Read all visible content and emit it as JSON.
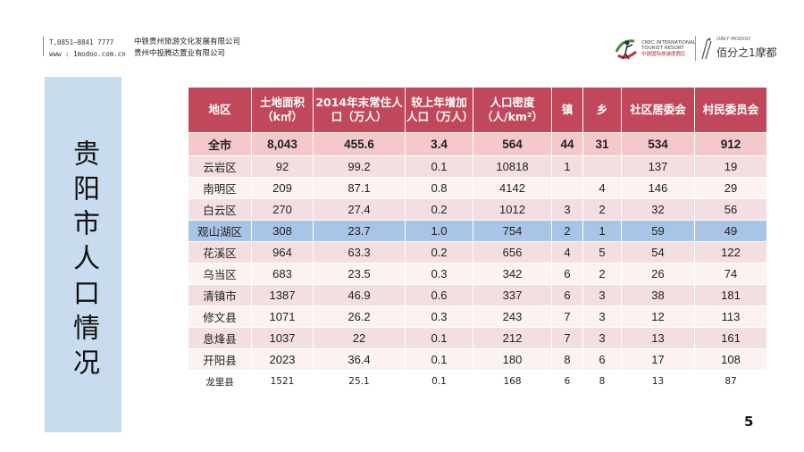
{
  "header": {
    "phone": "T,0851—8841 7777",
    "website": "www : 1modoo.com.cn",
    "company1": "中铁贵州旅游文化发展有限公司",
    "company2": "贵州中投腾达置业有限公司"
  },
  "logos": {
    "crec_line1": "CREC INTERNATIONAL",
    "crec_line2": "TOURIST RESORT",
    "crec_cn": "中铁国际旅游度假区",
    "modoo_small": "ONLY MODOO",
    "modoo_cn": "佰分之1摩都"
  },
  "title": "贵阳市人口情况",
  "table": {
    "headers": [
      "地区",
      "土地面积（k㎡）",
      "2014年末常住人口（万人）",
      "较上年增加人口（万人）",
      "人口密度（人/km²）",
      "镇",
      "乡",
      "社区居委会",
      "村民委员会"
    ],
    "rows": [
      [
        "全市",
        "8,043",
        "455.6",
        "3.4",
        "564",
        "44",
        "31",
        "534",
        "912"
      ],
      [
        "云岩区",
        "92",
        "99.2",
        "0.1",
        "10818",
        "1",
        "",
        "137",
        "19"
      ],
      [
        "南明区",
        "209",
        "87.1",
        "0.8",
        "4142",
        "",
        "4",
        "146",
        "29"
      ],
      [
        "白云区",
        "270",
        "27.4",
        "0.2",
        "1012",
        "3",
        "2",
        "32",
        "56"
      ],
      [
        "观山湖区",
        "308",
        "23.7",
        "1.0",
        "754",
        "2",
        "1",
        "59",
        "49"
      ],
      [
        "花溪区",
        "964",
        "63.3",
        "0.2",
        "656",
        "4",
        "5",
        "54",
        "122"
      ],
      [
        "乌当区",
        "683",
        "23.5",
        "0.3",
        "342",
        "6",
        "2",
        "26",
        "74"
      ],
      [
        "清镇市",
        "1387",
        "46.9",
        "0.6",
        "337",
        "6",
        "3",
        "38",
        "181"
      ],
      [
        "修文县",
        "1071",
        "26.2",
        "0.3",
        "243",
        "7",
        "3",
        "12",
        "113"
      ],
      [
        "息烽县",
        "1037",
        "22",
        "0.1",
        "212",
        "7",
        "3",
        "13",
        "161"
      ],
      [
        "开阳县",
        "2023",
        "36.4",
        "0.1",
        "180",
        "8",
        "6",
        "17",
        "108"
      ],
      [
        "龙里县",
        "1521",
        "25.1",
        "0.1",
        "168",
        "6",
        "8",
        "13",
        "87"
      ]
    ],
    "highlight_row": 4
  },
  "page_number": "5",
  "colors": {
    "header_bg": "#c1485b",
    "highlight_bg": "#a8c4e6",
    "title_box_bg": "#c9dcef"
  }
}
